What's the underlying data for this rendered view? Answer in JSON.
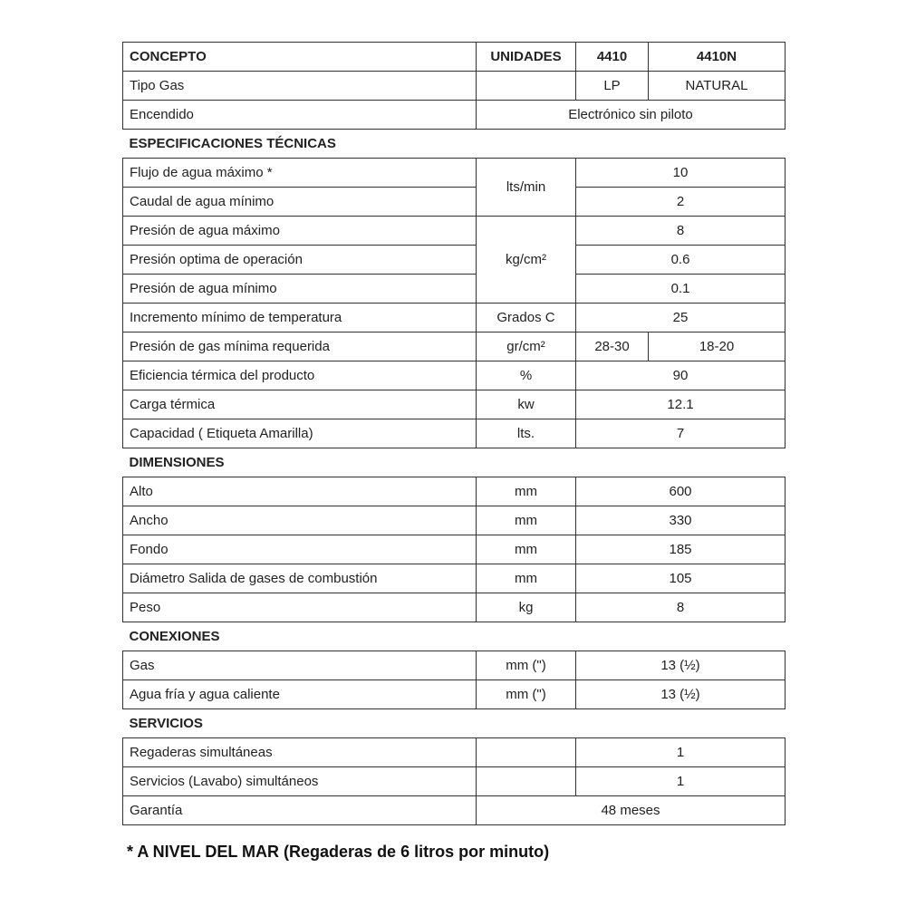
{
  "header": {
    "concepto": "CONCEPTO",
    "unidades": "UNIDADES",
    "m1": "4410",
    "m2": "4410N"
  },
  "general": [
    {
      "label": "Tipo Gas",
      "unit": "",
      "m1": "LP",
      "m2": "NATURAL"
    },
    {
      "label": "Encendido",
      "value": "Electrónico sin piloto"
    }
  ],
  "sections": {
    "specs": "ESPECIFICACIONES TÉCNICAS",
    "dims": "DIMENSIONES",
    "conn": "CONEXIONES",
    "serv": "SERVICIOS"
  },
  "specs": [
    {
      "label": "Flujo de agua máximo *",
      "unit": "lts/min",
      "value": "10"
    },
    {
      "label": "Caudal de agua mínimo",
      "value": "2"
    },
    {
      "label": "Presión de agua máximo",
      "unit": "kg/cm²",
      "value": "8"
    },
    {
      "label": "Presión optima de operación",
      "value": "0.6"
    },
    {
      "label": "Presión de agua mínimo",
      "value": "0.1"
    },
    {
      "label": "Incremento mínimo de temperatura",
      "unit": "Grados C",
      "value": "25"
    },
    {
      "label": "Presión de gas mínima requerida",
      "unit": "gr/cm²",
      "m1": "28-30",
      "m2": "18-20"
    },
    {
      "label": "Eficiencia térmica del producto",
      "unit": "%",
      "value": "90"
    },
    {
      "label": "Carga térmica",
      "unit": "kw",
      "value": "12.1"
    },
    {
      "label": "Capacidad ( Etiqueta Amarilla)",
      "unit": "lts.",
      "value": "7"
    }
  ],
  "dims": [
    {
      "label": "Alto",
      "unit": "mm",
      "value": "600"
    },
    {
      "label": "Ancho",
      "unit": "mm",
      "value": "330"
    },
    {
      "label": "Fondo",
      "unit": "mm",
      "value": "185"
    },
    {
      "label": "Diámetro Salida de gases de combustión",
      "unit": "mm",
      "value": "105"
    },
    {
      "label": "Peso",
      "unit": "kg",
      "value": "8"
    }
  ],
  "conn": [
    {
      "label": "Gas",
      "unit": "mm (\")",
      "value": "13 (½)"
    },
    {
      "label": "Agua fría y agua caliente",
      "unit": "mm (\")",
      "value": "13 (½)"
    }
  ],
  "serv": [
    {
      "label": "Regaderas simultáneas",
      "unit": "",
      "value": "1"
    },
    {
      "label": "Servicios (Lavabo) simultáneos",
      "unit": "",
      "value": "1"
    },
    {
      "label": "Garantía",
      "value": "48 meses"
    }
  ],
  "footnote": "* A NIVEL DEL MAR (Regaderas de 6 litros por minuto)"
}
